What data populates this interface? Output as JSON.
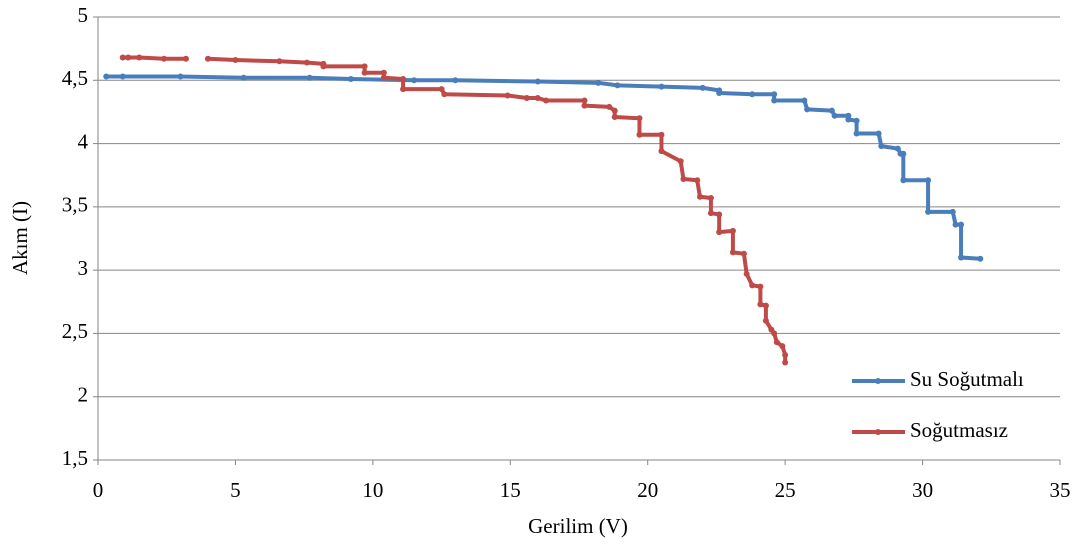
{
  "chart_data": {
    "type": "line",
    "xlabel": "Gerilim (V)",
    "ylabel": "Akım (I)",
    "xlim": [
      0,
      35
    ],
    "xticks": [
      0,
      5,
      10,
      15,
      20,
      25,
      30,
      35
    ],
    "ylim": [
      1.5,
      5
    ],
    "yticks": [
      {
        "value": 1.5,
        "label": "1,5"
      },
      2,
      {
        "value": 2.5,
        "label": "2,5"
      },
      3,
      {
        "value": 3.5,
        "label": "3,5"
      },
      4,
      {
        "value": 4.5,
        "label": "4,5"
      },
      5
    ],
    "grid": true,
    "legend": "lower right",
    "series": [
      {
        "name": "Su Soğutmalı",
        "color": "#4a7ebb",
        "x": [
          0.3,
          0.9,
          3,
          5.3,
          7.7,
          9.2,
          11.5,
          13,
          16,
          18.2,
          18.9,
          20.5,
          22,
          22.6,
          22.6,
          23.8,
          24.6,
          24.6,
          25.7,
          25.8,
          26.7,
          26.8,
          27.3,
          27.3,
          27.6,
          27.6,
          28.4,
          28.5,
          29.1,
          29.2,
          29.3,
          29.3,
          30.2,
          30.2,
          31.1,
          31.2,
          31.4,
          31.4,
          32.1
        ],
        "values": [
          4.53,
          4.53,
          4.53,
          4.52,
          4.52,
          4.51,
          4.5,
          4.5,
          4.49,
          4.48,
          4.46,
          4.45,
          4.44,
          4.42,
          4.4,
          4.39,
          4.39,
          4.34,
          4.34,
          4.27,
          4.26,
          4.22,
          4.22,
          4.19,
          4.18,
          4.08,
          4.08,
          3.98,
          3.96,
          3.92,
          3.92,
          3.71,
          3.71,
          3.46,
          3.46,
          3.36,
          3.36,
          3.1,
          3.09
        ]
      },
      {
        "name": "Soğutmasız",
        "color": "#be4b48",
        "x": [
          0.9,
          1.1,
          1.5,
          2.4,
          3.2,
          3.6,
          4,
          5,
          6.6,
          7.6,
          8.2,
          8.2,
          9.7,
          9.7,
          10.4,
          10.4,
          11.1,
          11.1,
          12.5,
          12.6,
          14.9,
          15.6,
          16,
          16.3,
          17.7,
          17.7,
          18.6,
          18.8,
          18.8,
          19.7,
          19.7,
          20.5,
          20.5,
          21.2,
          21.3,
          21.8,
          21.9,
          22.3,
          22.3,
          22.6,
          22.6,
          23.1,
          23.1,
          23.5,
          23.6,
          23.8,
          24.1,
          24.1,
          24.3,
          24.3,
          24.5,
          24.6,
          24.7,
          24.9,
          25,
          25
        ],
        "values": [
          4.68,
          4.68,
          4.68,
          4.67,
          4.67,
          null,
          4.67,
          4.66,
          4.65,
          4.64,
          4.63,
          4.61,
          4.61,
          4.56,
          4.56,
          4.52,
          4.51,
          4.43,
          4.43,
          4.39,
          4.38,
          4.36,
          4.36,
          4.34,
          4.34,
          4.3,
          4.29,
          4.26,
          4.21,
          4.2,
          4.07,
          4.07,
          3.94,
          3.86,
          3.72,
          3.71,
          3.58,
          3.57,
          3.45,
          3.44,
          3.3,
          3.31,
          3.14,
          3.13,
          2.97,
          2.88,
          2.87,
          2.73,
          2.72,
          2.6,
          2.53,
          2.5,
          2.43,
          2.4,
          2.33,
          2.27
        ]
      }
    ]
  }
}
